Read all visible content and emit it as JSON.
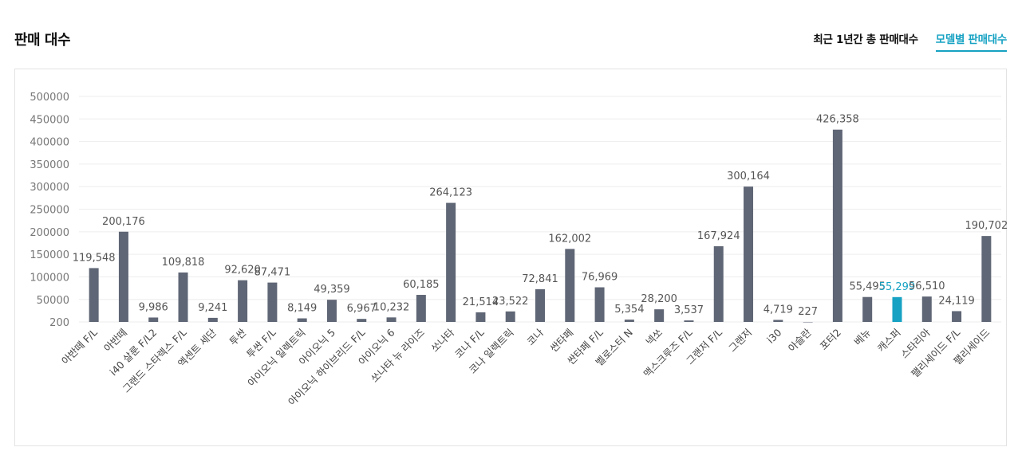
{
  "header": {
    "title": "판매 대수",
    "tabs": [
      {
        "label": "최근 1년간 총 판매대수",
        "active": false
      },
      {
        "label": "모델별 판매대수",
        "active": true
      }
    ]
  },
  "colors": {
    "bar": "#5f6675",
    "highlight": "#17a2c3",
    "grid": "#ededed"
  },
  "chart_data": {
    "type": "bar",
    "title": "",
    "xlabel": "",
    "ylabel": "",
    "ylim": [
      200,
      500000
    ],
    "yticks": [
      "500000",
      "450000",
      "400000",
      "350000",
      "300000",
      "250000",
      "200000",
      "150000",
      "100000",
      "50000",
      "200"
    ],
    "ytick_values": [
      500000,
      450000,
      400000,
      350000,
      300000,
      250000,
      200000,
      150000,
      100000,
      50000,
      200
    ],
    "grid": true,
    "highlight_index": 27,
    "categories": [
      "아반떼 F/L",
      "아반떼",
      "i40 살룬 F/L2",
      "그랜드 스타렉스 F/L",
      "엑센트 세단",
      "투싼",
      "투싼 F/L",
      "아이오닉 일렉트릭",
      "아이오닉 5",
      "아이오닉 하이브리드 F/L",
      "아이오닉 6",
      "쏘나타 뉴 라이즈",
      "쏘나타",
      "코나 F/L",
      "코나 일렉트릭",
      "코나",
      "싼타페",
      "싼타페 F/L",
      "벨로스터 N",
      "넥쏘",
      "맥스크루즈 F/L",
      "그랜저 F/L",
      "그랜저",
      "i30",
      "아슬란",
      "포터2",
      "베뉴",
      "캐스퍼",
      "스타리아",
      "팰리세이드 F/L",
      "팰리세이드"
    ],
    "values": [
      119548,
      200176,
      9986,
      109818,
      9241,
      92620,
      87471,
      8149,
      49359,
      6967,
      10232,
      60185,
      264123,
      21514,
      23522,
      72841,
      162002,
      76969,
      5354,
      28200,
      3537,
      167924,
      300164,
      4719,
      227,
      426358,
      55495,
      55299,
      56510,
      24119,
      190702
    ],
    "value_labels": [
      "119,548",
      "200,176",
      "9,986",
      "109,818",
      "9,241",
      "92,620",
      "87,471",
      "8,149",
      "49,359",
      "6,967",
      "10,232",
      "60,185",
      "264,123",
      "21,514",
      "23,522",
      "72,841",
      "162,002",
      "76,969",
      "5,354",
      "28,200",
      "3,537",
      "167,924",
      "300,164",
      "4,719",
      "227",
      "426,358",
      "55,495",
      "55,299",
      "56,510",
      "24,119",
      "190,702"
    ]
  }
}
